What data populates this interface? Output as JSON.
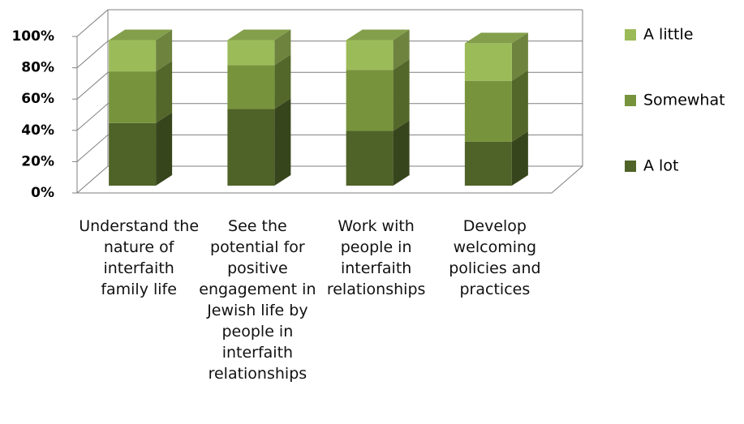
{
  "chart_data": {
    "type": "bar3d_stacked",
    "categories": [
      "Understand the nature of interfaith family life",
      "See the potential for positive engagement in Jewish life by people in interfaith relationships",
      "Work with people in interfaith relationships",
      "Develop welcoming policies and practices"
    ],
    "series": [
      {
        "name": "A lot",
        "color": "#4f6228",
        "values": [
          40,
          49,
          35,
          28
        ]
      },
      {
        "name": "Somewhat",
        "color": "#77933c",
        "values": [
          33,
          28,
          39,
          39
        ]
      },
      {
        "name": "A little",
        "color": "#9bbb59",
        "values": [
          20,
          16,
          19,
          24
        ]
      }
    ],
    "ylim": [
      0,
      100
    ],
    "yticks": [
      {
        "value": 0,
        "label": "0%"
      },
      {
        "value": 20,
        "label": "20%"
      },
      {
        "value": 40,
        "label": "40%"
      },
      {
        "value": 60,
        "label": "60%"
      },
      {
        "value": 80,
        "label": "80%"
      },
      {
        "value": 100,
        "label": "100%"
      }
    ],
    "grid": true,
    "legend": "right"
  }
}
